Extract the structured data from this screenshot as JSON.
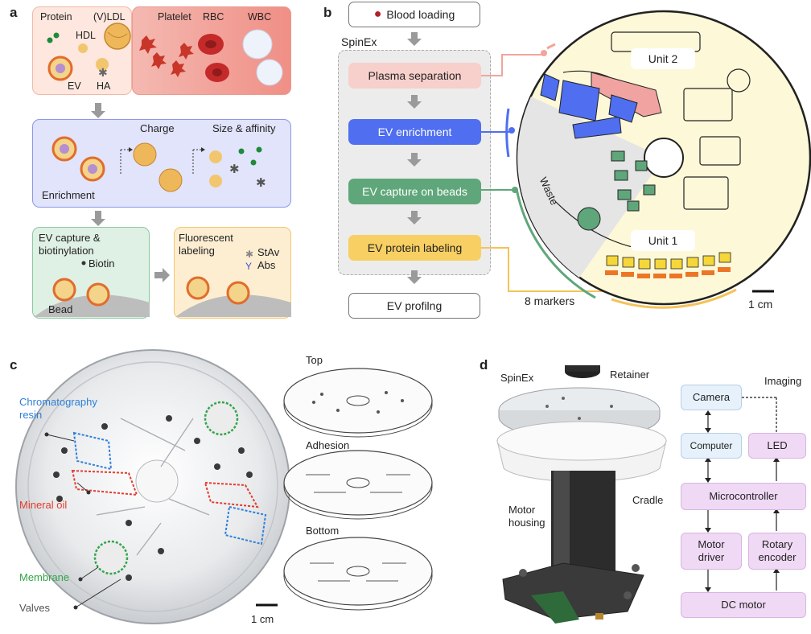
{
  "panels": {
    "a": "a",
    "b": "b",
    "c": "c",
    "d": "d"
  },
  "panel_a": {
    "labels": {
      "protein": "Protein",
      "vldl": "(V)LDL",
      "hdl": "HDL",
      "ev": "EV",
      "ha": "HA",
      "platelet": "Platelet",
      "rbc": "RBC",
      "wbc": "WBC"
    },
    "enrichment": {
      "charge": "Charge",
      "size_affinity": "Size & affinity",
      "title": "Enrichment"
    },
    "capture": {
      "title": "EV capture &\nbiotinylation",
      "biotin": "Biotin",
      "bead": "Bead"
    },
    "labeling": {
      "title": "Fluorescent\nlabeling",
      "stav": "StAv",
      "abs": "Abs"
    }
  },
  "panel_b": {
    "blood_loading": "Blood loading",
    "spinex": "SpinEx",
    "steps": [
      "Plasma separation",
      "EV enrichment",
      "EV capture on beads",
      "EV protein labeling"
    ],
    "profiling": "EV profilng",
    "disc": {
      "unit2": "Unit 2",
      "unit1": "Unit 1",
      "waste": "Waste",
      "markers": "8 markers",
      "scale": "1 cm"
    },
    "colors": {
      "plasma": "#f7cfcb",
      "enrich": "#4f6ff0",
      "capture": "#5fa77a",
      "label": "#f8cf62"
    }
  },
  "panel_c": {
    "callouts": {
      "chromatography": "Chromatography\nresin",
      "mineral": "Mineral oil",
      "membrane": "Membrane",
      "valves": "Valves"
    },
    "scale": "1 cm",
    "layers": [
      "Top",
      "Adhesion",
      "Bottom"
    ]
  },
  "panel_d": {
    "labels": {
      "spinex": "SpinEx",
      "retainer": "Retainer",
      "cradle": "Cradle",
      "motor_housing": "Motor\nhousing",
      "imaging": "Imaging"
    },
    "blocks": {
      "camera": "Camera",
      "computer": "Computer",
      "led": "LED",
      "microcontroller": "Microcontroller",
      "motor_driver": "Motor\ndriver",
      "rotary_encoder": "Rotary\nencoder",
      "dc_motor": "DC motor"
    }
  }
}
